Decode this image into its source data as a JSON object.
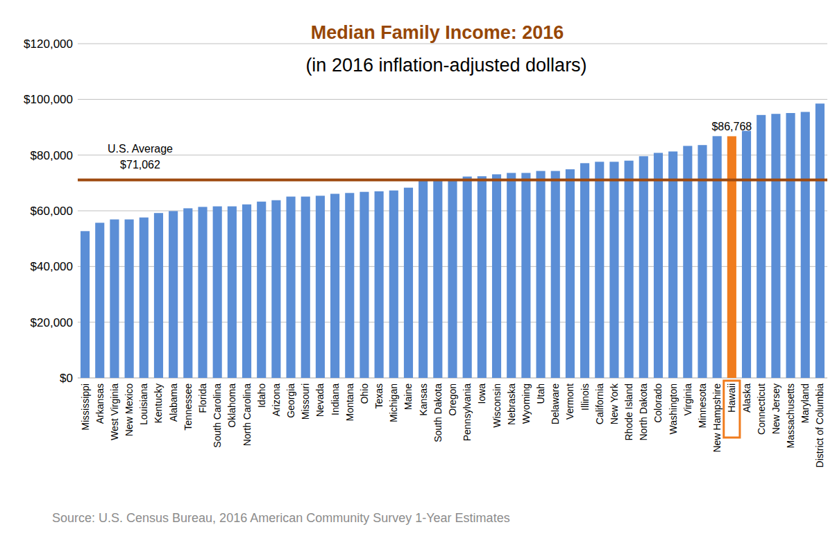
{
  "chart_data": {
    "type": "bar",
    "title": "Median Family Income: 2016",
    "subtitle": "(in 2016 inflation-adjusted dollars)",
    "source": "Source: U.S. Census Bureau, 2016 American Community Survey 1-Year Estimates",
    "categories": [
      "Mississippi",
      "Arkansas",
      "West Virginia",
      "New Mexico",
      "Louisiana",
      "Kentucky",
      "Alabama",
      "Tennessee",
      "Florida",
      "South Carolina",
      "Oklahoma",
      "North Carolina",
      "Idaho",
      "Arizona",
      "Georgia",
      "Missouri",
      "Nevada",
      "Indiana",
      "Montana",
      "Ohio",
      "Texas",
      "Michigan",
      "Maine",
      "Kansas",
      "South Dakota",
      "Oregon",
      "Pennsylvania",
      "Iowa",
      "Wisconsin",
      "Nebraska",
      "Wyoming",
      "Utah",
      "Delaware",
      "Vermont",
      "Illinois",
      "California",
      "New York",
      "Rhode Island",
      "North Dakota",
      "Colorado",
      "Washington",
      "Virginia",
      "Minnesota",
      "New Hampshire",
      "Hawaii",
      "Alaska",
      "Connecticut",
      "New Jersey",
      "Massachusetts",
      "Maryland",
      "District of Columbia"
    ],
    "values": [
      52700,
      55700,
      56900,
      56900,
      57600,
      59200,
      59900,
      60900,
      61400,
      61600,
      61600,
      62300,
      63300,
      63800,
      65100,
      65100,
      65400,
      66100,
      66400,
      66800,
      67000,
      67300,
      68300,
      71000,
      71000,
      71200,
      72300,
      72400,
      73100,
      73600,
      73600,
      74300,
      74300,
      74900,
      77100,
      77600,
      77600,
      78000,
      79600,
      80800,
      81300,
      83300,
      83600,
      86800,
      86768,
      88700,
      94400,
      94800,
      95100,
      95500,
      98500
    ],
    "value_labels": [
      null,
      null,
      null,
      null,
      null,
      null,
      null,
      null,
      null,
      null,
      null,
      null,
      null,
      null,
      null,
      null,
      null,
      null,
      null,
      null,
      null,
      null,
      null,
      null,
      null,
      null,
      null,
      null,
      null,
      null,
      null,
      null,
      null,
      null,
      null,
      null,
      null,
      null,
      null,
      null,
      null,
      null,
      null,
      null,
      "$86,768",
      null,
      null,
      null,
      null,
      null,
      null
    ],
    "colors": [
      "#5b8ed6",
      "#5b8ed6",
      "#5b8ed6",
      "#5b8ed6",
      "#5b8ed6",
      "#5b8ed6",
      "#5b8ed6",
      "#5b8ed6",
      "#5b8ed6",
      "#5b8ed6",
      "#5b8ed6",
      "#5b8ed6",
      "#5b8ed6",
      "#5b8ed6",
      "#5b8ed6",
      "#5b8ed6",
      "#5b8ed6",
      "#5b8ed6",
      "#5b8ed6",
      "#5b8ed6",
      "#5b8ed6",
      "#5b8ed6",
      "#5b8ed6",
      "#5b8ed6",
      "#5b8ed6",
      "#5b8ed6",
      "#5b8ed6",
      "#5b8ed6",
      "#5b8ed6",
      "#5b8ed6",
      "#5b8ed6",
      "#5b8ed6",
      "#5b8ed6",
      "#5b8ed6",
      "#5b8ed6",
      "#5b8ed6",
      "#5b8ed6",
      "#5b8ed6",
      "#5b8ed6",
      "#5b8ed6",
      "#5b8ed6",
      "#5b8ed6",
      "#5b8ed6",
      "#5b8ed6",
      "#f07c1e",
      "#5b8ed6",
      "#5b8ed6",
      "#5b8ed6",
      "#5b8ed6",
      "#5b8ed6",
      "#5b8ed6"
    ],
    "reference_line": {
      "label": "U.S. Average",
      "value": 71062,
      "value_label": "$71,062",
      "color": "#9e4a0f"
    },
    "ylim": [
      0,
      120000
    ],
    "yticks": [
      {
        "value": 0,
        "label": "$0"
      },
      {
        "value": 20000,
        "label": "$20,000"
      },
      {
        "value": 40000,
        "label": "$40,000"
      },
      {
        "value": 60000,
        "label": "$60,000"
      },
      {
        "value": 80000,
        "label": "$80,000"
      },
      {
        "value": 100000,
        "label": "$100,000"
      },
      {
        "value": 120000,
        "label": "$120,000"
      }
    ],
    "grid": true
  }
}
